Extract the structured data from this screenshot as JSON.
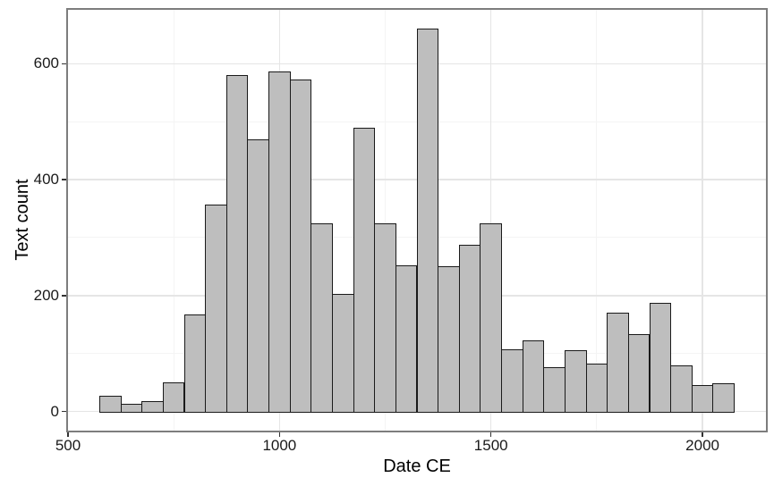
{
  "figure": {
    "background": "#ffffff",
    "panel_border_color": "#7d7d7d",
    "grid_major_color": "#e5e5e5",
    "grid_minor_color": "#f4f4f4",
    "bar_fill": "#bebebe",
    "bar_stroke": "#1a1a1a",
    "axis_text_color": "#1a1a1a",
    "axis_title_color": "#000000"
  },
  "chart_data": {
    "type": "bar",
    "subtype": "histogram",
    "title": "",
    "xlabel": "Date CE",
    "ylabel": "Text count",
    "grid": "on",
    "legend": "none",
    "bin_width": 50,
    "bin_starts": [
      575,
      625,
      675,
      725,
      775,
      825,
      875,
      925,
      975,
      1025,
      1075,
      1125,
      1175,
      1225,
      1275,
      1325,
      1375,
      1425,
      1475,
      1525,
      1575,
      1625,
      1675,
      1725,
      1775,
      1825,
      1875,
      1925,
      1975,
      2025
    ],
    "values": [
      27,
      14,
      18,
      51,
      168,
      357,
      580,
      470,
      587,
      573,
      324,
      203,
      490,
      324,
      252,
      660,
      251,
      288,
      324,
      108,
      123,
      77,
      106,
      82,
      170,
      134,
      187,
      80,
      46,
      49
    ],
    "xlim": [
      500,
      2150
    ],
    "ylim": [
      -33,
      693
    ],
    "x_ticks": [
      500,
      1000,
      1500,
      2000
    ],
    "y_ticks": [
      0,
      200,
      400,
      600
    ],
    "x_minor_gridlines": [
      750,
      1250,
      1750
    ],
    "y_minor_gridlines": [
      100,
      300,
      500
    ]
  }
}
